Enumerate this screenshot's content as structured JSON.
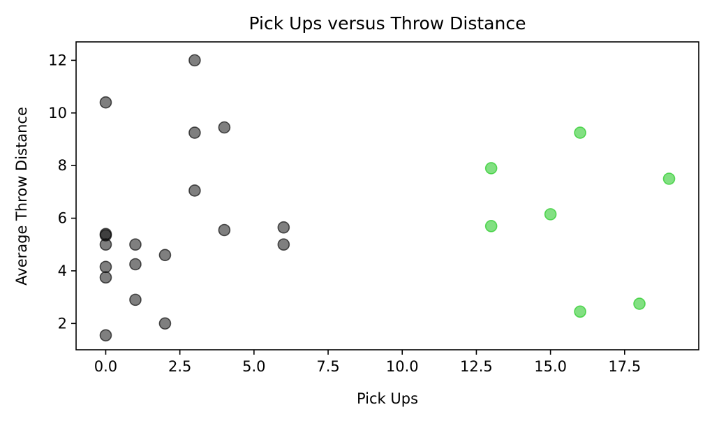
{
  "chart_data": {
    "type": "scatter",
    "title": "Pick Ups versus Throw Distance",
    "xlabel": "Pick Ups",
    "ylabel": "Average Throw Distance",
    "xlim": [
      -1,
      20
    ],
    "ylim": [
      1.0,
      12.7
    ],
    "xticks": [
      0.0,
      2.5,
      5.0,
      7.5,
      10.0,
      12.5,
      15.0,
      17.5
    ],
    "xtick_labels": [
      "0.0",
      "2.5",
      "5.0",
      "7.5",
      "10.0",
      "12.5",
      "15.0",
      "17.5"
    ],
    "yticks": [
      2,
      4,
      6,
      8,
      10,
      12
    ],
    "ytick_labels": [
      "2",
      "4",
      "6",
      "8",
      "10",
      "12"
    ],
    "grid": false,
    "series": [
      {
        "color": "#000000",
        "opacity": 0.5,
        "points": [
          {
            "x": 0,
            "y": 10.4
          },
          {
            "x": 0,
            "y": 5.4
          },
          {
            "x": 0,
            "y": 5.35
          },
          {
            "x": 0,
            "y": 5.0
          },
          {
            "x": 0,
            "y": 4.15
          },
          {
            "x": 0,
            "y": 3.75
          },
          {
            "x": 0,
            "y": 1.55
          },
          {
            "x": 1,
            "y": 5.0
          },
          {
            "x": 1,
            "y": 4.25
          },
          {
            "x": 1,
            "y": 2.9
          },
          {
            "x": 2,
            "y": 4.6
          },
          {
            "x": 2,
            "y": 2.0
          },
          {
            "x": 3,
            "y": 12.0
          },
          {
            "x": 3,
            "y": 9.25
          },
          {
            "x": 3,
            "y": 7.05
          },
          {
            "x": 4,
            "y": 9.45
          },
          {
            "x": 4,
            "y": 5.55
          },
          {
            "x": 6,
            "y": 5.65
          },
          {
            "x": 6,
            "y": 5.0
          }
        ]
      },
      {
        "color": "#2ecc2e",
        "opacity": 0.6,
        "points": [
          {
            "x": 13,
            "y": 7.9
          },
          {
            "x": 13,
            "y": 5.7
          },
          {
            "x": 15,
            "y": 6.15
          },
          {
            "x": 16,
            "y": 9.25
          },
          {
            "x": 16,
            "y": 2.45
          },
          {
            "x": 18,
            "y": 2.75
          },
          {
            "x": 19,
            "y": 7.5
          }
        ]
      }
    ]
  }
}
